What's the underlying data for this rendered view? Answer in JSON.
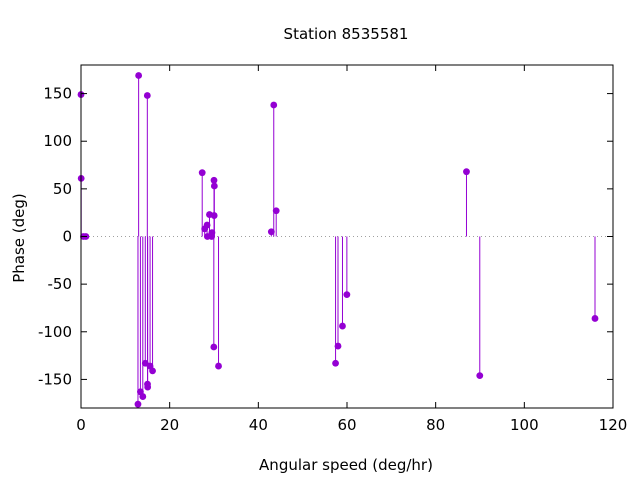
{
  "chart_data": {
    "type": "scatter",
    "style": "impulses-with-points",
    "title": "Station 8535581",
    "xlabel": "Angular speed (deg/hr)",
    "ylabel": "Phase (deg)",
    "xlim": [
      0,
      120
    ],
    "ylim": [
      -180,
      180
    ],
    "xticks": [
      0,
      20,
      40,
      60,
      80,
      100,
      120
    ],
    "xtick_labels": [
      "0",
      "20",
      "40",
      "60",
      "80",
      "100",
      "120"
    ],
    "yticks": [
      -150,
      -100,
      -50,
      0,
      50,
      100,
      150
    ],
    "ytick_labels": [
      "-150",
      "-100",
      "-50",
      "0",
      "50",
      "100",
      "150"
    ],
    "zero_line": "dotted",
    "grid": false,
    "legend": "none",
    "colors": {
      "series": "#9400d3",
      "axis": "#000000",
      "zero_line": "#a0a0a0"
    },
    "series": [
      {
        "points": [
          {
            "x": 0.0,
            "y": 149
          },
          {
            "x": 0.04,
            "y": 61
          },
          {
            "x": 0.55,
            "y": 0
          },
          {
            "x": 1.1,
            "y": 0
          },
          {
            "x": 12.85,
            "y": -176
          },
          {
            "x": 13.4,
            "y": -163
          },
          {
            "x": 13.0,
            "y": 169
          },
          {
            "x": 13.94,
            "y": -168
          },
          {
            "x": 14.5,
            "y": -133
          },
          {
            "x": 14.96,
            "y": 148
          },
          {
            "x": 15.0,
            "y": -155
          },
          {
            "x": 15.04,
            "y": -158
          },
          {
            "x": 15.58,
            "y": -136
          },
          {
            "x": 16.14,
            "y": -141
          },
          {
            "x": 27.34,
            "y": 67
          },
          {
            "x": 27.9,
            "y": 8
          },
          {
            "x": 28.44,
            "y": 12
          },
          {
            "x": 28.51,
            "y": 0
          },
          {
            "x": 28.98,
            "y": 23
          },
          {
            "x": 29.46,
            "y": 0
          },
          {
            "x": 29.53,
            "y": 4
          },
          {
            "x": 29.96,
            "y": -116
          },
          {
            "x": 30.0,
            "y": 59
          },
          {
            "x": 30.04,
            "y": 22
          },
          {
            "x": 30.08,
            "y": 53
          },
          {
            "x": 31.02,
            "y": -136
          },
          {
            "x": 42.93,
            "y": 5
          },
          {
            "x": 43.48,
            "y": 138
          },
          {
            "x": 44.03,
            "y": 27
          },
          {
            "x": 57.42,
            "y": -133
          },
          {
            "x": 57.97,
            "y": -115
          },
          {
            "x": 58.98,
            "y": -94
          },
          {
            "x": 59.97,
            "y": -61
          },
          {
            "x": 86.95,
            "y": 68
          },
          {
            "x": 89.95,
            "y": -146
          },
          {
            "x": 115.94,
            "y": -86
          }
        ]
      }
    ]
  }
}
